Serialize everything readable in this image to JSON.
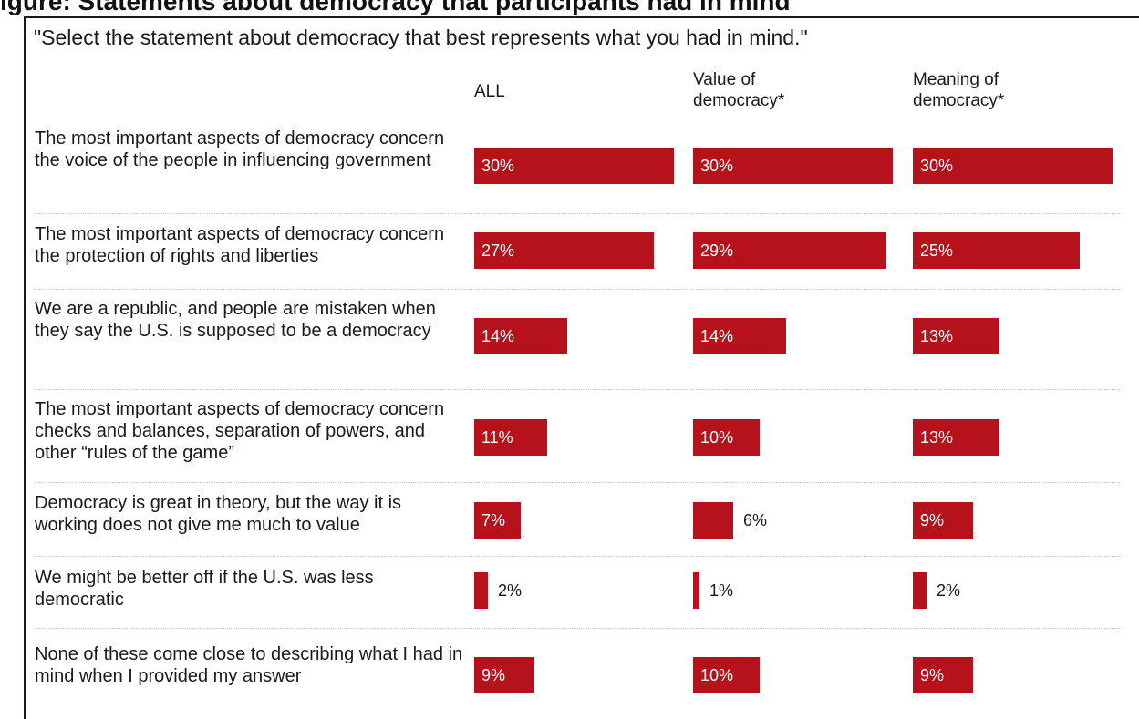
{
  "title": "igure: Statements about democracy that participants had in mind",
  "question": "\"Select the statement about democracy that best represents what you had in mind.\"",
  "chart_data": {
    "type": "bar",
    "orientation": "horizontal",
    "value_format": "percent",
    "bar_color": "#b5121b",
    "columns": [
      "ALL",
      "Value of\ndemocracy*",
      "Meaning of\ndemocracy*"
    ],
    "categories": [
      "The most important aspects of democracy concern the voice of the people in influencing government",
      "The most important aspects of democracy concern the protection of rights and liberties",
      "We are a republic, and people are mistaken when they say the U.S. is supposed to be a democracy",
      "The most important aspects of democracy concern checks and balances, separation of powers, and other “rules of the game”",
      "Democracy is great in theory, but the way it is working does not give me much to value",
      "We might be better off if the U.S. was less democratic",
      "None of these come close to describing what I had in mind when I provided my answer"
    ],
    "series": [
      {
        "name": "ALL",
        "values": [
          30,
          27,
          14,
          11,
          7,
          2,
          9
        ]
      },
      {
        "name": "Value of democracy*",
        "values": [
          30,
          29,
          14,
          10,
          6,
          1,
          10
        ]
      },
      {
        "name": "Meaning of democracy*",
        "values": [
          30,
          25,
          13,
          13,
          9,
          2,
          9
        ]
      }
    ]
  }
}
